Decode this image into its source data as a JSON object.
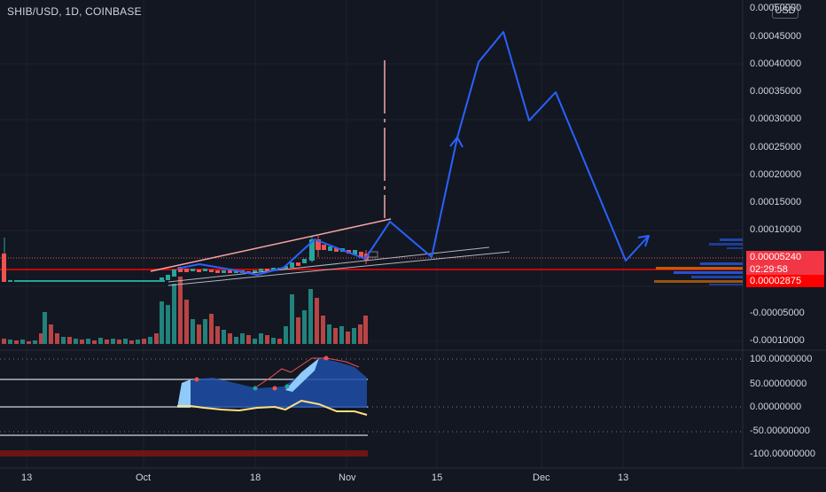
{
  "header": {
    "symbol": "SHIB/USD, 1D, COINBASE",
    "currency_badge": "USD"
  },
  "price_scale": {
    "ticks": [
      "0.00050000",
      "0.00045000",
      "0.00040000",
      "0.00035000",
      "0.00030000",
      "0.00025000",
      "0.00020000",
      "0.00015000",
      "0.00010000",
      "0.00005240",
      "0.00002875",
      "-0.00005000",
      "-0.00010000"
    ]
  },
  "price_tags": {
    "last_price": "0.00005240",
    "countdown": "02:29:58",
    "level": "0.00002875"
  },
  "oscillator_scale": {
    "ticks": [
      "100.00000000",
      "50.00000000",
      "0.00000000",
      "-50.00000000",
      "-100.00000000"
    ]
  },
  "time_axis": {
    "labels": [
      "13",
      "Oct",
      "18",
      "Nov",
      "15",
      "Dec",
      "13"
    ]
  },
  "colors": {
    "background": "#131722",
    "up": "#26a69a",
    "down": "#ef5350",
    "projection": "#2962ff",
    "level_line": "#ff0000",
    "trend_line": "#f8a5a5"
  }
}
